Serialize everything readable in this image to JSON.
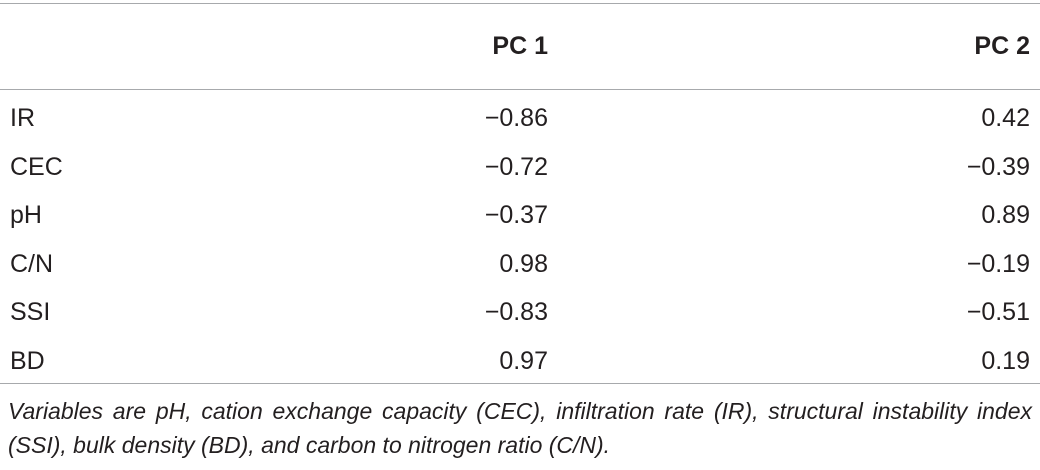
{
  "table": {
    "columns": [
      "",
      "PC 1",
      "PC 2"
    ],
    "rows": [
      {
        "label": "IR",
        "pc1": "−0.86",
        "pc2": "0.42"
      },
      {
        "label": "CEC",
        "pc1": "−0.72",
        "pc2": "−0.39"
      },
      {
        "label": "pH",
        "pc1": "−0.37",
        "pc2": "0.89"
      },
      {
        "label": "C/N",
        "pc1": "0.98",
        "pc2": "−0.19"
      },
      {
        "label": "SSI",
        "pc1": "−0.83",
        "pc2": "−0.51"
      },
      {
        "label": "BD",
        "pc1": "0.97",
        "pc2": "0.19"
      }
    ],
    "footnote": "Variables are pH, cation exchange capacity (CEC), infiltration rate (IR), structural instability index (SSI), bulk density (BD), and carbon to nitrogen ratio (C/N)."
  }
}
